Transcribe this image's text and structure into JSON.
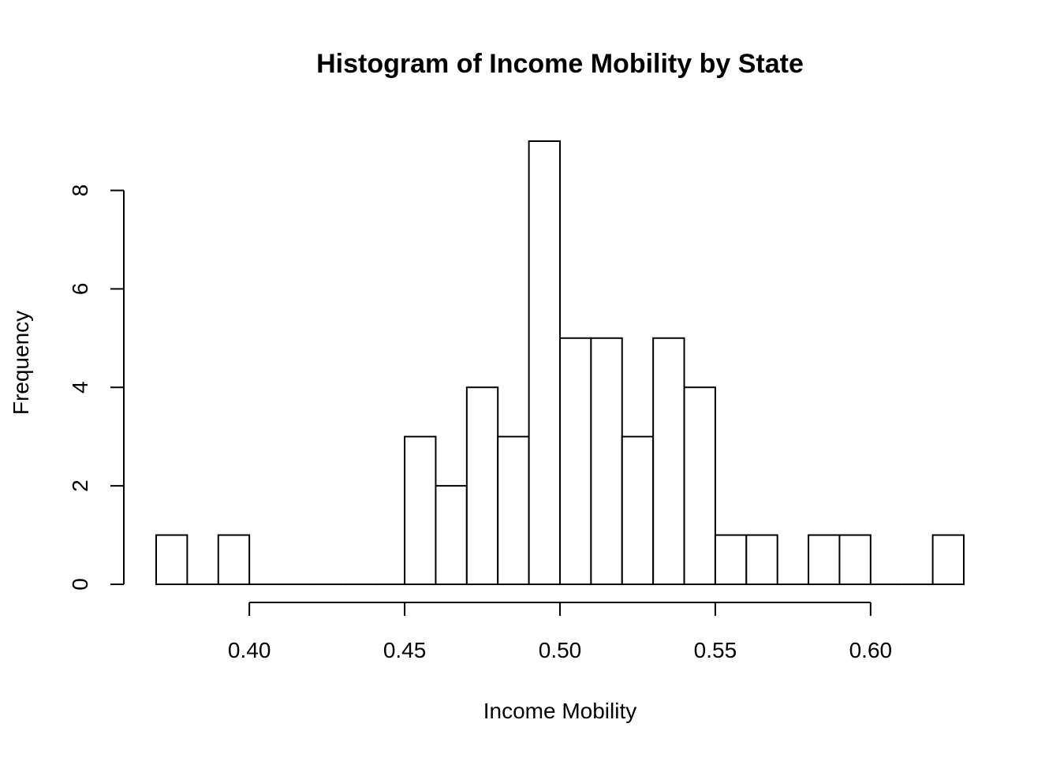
{
  "chart_data": {
    "type": "bar",
    "subtype": "histogram",
    "title": "Histogram of Income Mobility by State",
    "xlabel": "Income Mobility",
    "ylabel": "Frequency",
    "bin_width": 0.01,
    "bin_edges": [
      0.37,
      0.38,
      0.39,
      0.4,
      0.41,
      0.42,
      0.43,
      0.44,
      0.45,
      0.46,
      0.47,
      0.48,
      0.49,
      0.5,
      0.51,
      0.52,
      0.53,
      0.54,
      0.55,
      0.56,
      0.57,
      0.58,
      0.59,
      0.6,
      0.61,
      0.62,
      0.63
    ],
    "values": [
      1,
      0,
      1,
      0,
      0,
      0,
      0,
      0,
      3,
      2,
      4,
      3,
      9,
      5,
      5,
      3,
      5,
      4,
      1,
      1,
      0,
      1,
      1,
      0,
      0,
      1
    ],
    "xlim": [
      0.37,
      0.63
    ],
    "ylim": [
      0,
      9
    ],
    "x_ticks": [
      0.4,
      0.45,
      0.5,
      0.55,
      0.6
    ],
    "x_tick_labels": [
      "0.40",
      "0.45",
      "0.50",
      "0.55",
      "0.60"
    ],
    "y_ticks": [
      0,
      2,
      4,
      6,
      8
    ],
    "y_tick_labels": [
      "0",
      "2",
      "4",
      "6",
      "8"
    ],
    "grid": false,
    "legend": "none",
    "colors": {
      "bar_fill": "#ffffff",
      "bar_stroke": "#000000",
      "axis": "#000000"
    }
  }
}
